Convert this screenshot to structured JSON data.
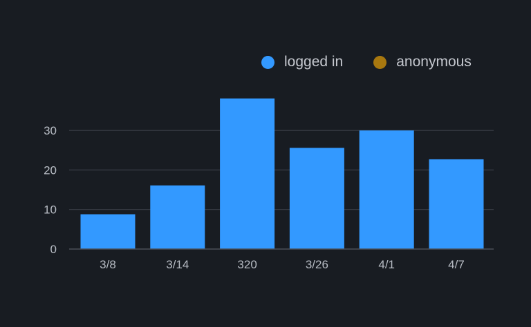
{
  "colors": {
    "background": "#181c22",
    "grid": "#3a3f47",
    "text": "#b7bcc4",
    "logged_in": "#3399ff",
    "anonymous": "#a8780f"
  },
  "legend": [
    {
      "label": "logged in",
      "color": "#3399ff"
    },
    {
      "label": "anonymous",
      "color": "#a8780f"
    }
  ],
  "chart_data": {
    "type": "bar",
    "categories": [
      "3/8",
      "3/14",
      "320",
      "3/26",
      "4/1",
      "4/7"
    ],
    "series": [
      {
        "name": "logged in",
        "values": [
          8.8,
          16.1,
          38.1,
          25.6,
          30.0,
          22.7
        ],
        "color": "#3399ff"
      },
      {
        "name": "anonymous",
        "values": [
          0,
          0,
          0,
          0,
          0,
          0
        ],
        "color": "#a8780f"
      }
    ],
    "yticks": [
      0,
      10,
      20,
      30
    ],
    "ylim": [
      0,
      40
    ],
    "grid": true,
    "legend_position": "top-right",
    "title": "",
    "xlabel": "",
    "ylabel": ""
  }
}
